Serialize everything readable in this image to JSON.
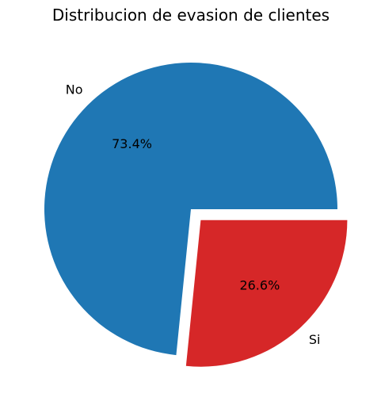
{
  "chart_data": {
    "type": "pie",
    "title": "Distribucion de evasion de clientes",
    "labels": [
      "No",
      "Si"
    ],
    "values": [
      73.4,
      26.6
    ],
    "percent_labels": [
      "73.4%",
      "26.6%"
    ],
    "explode": [
      0,
      0.1
    ],
    "start_angle_deg": 0,
    "direction": "counterclockwise",
    "colors": [
      "#1f77b4",
      "#d62728"
    ],
    "legend": "none"
  }
}
